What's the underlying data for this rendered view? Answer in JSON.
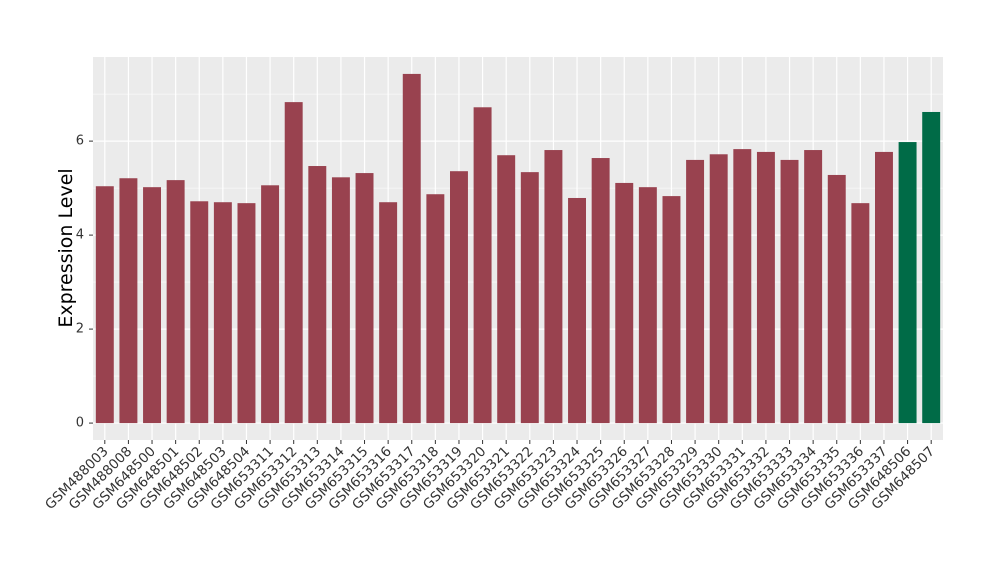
{
  "chart_data": {
    "type": "bar",
    "y_label": "Expression Level",
    "categories": [
      "GSM488003",
      "GSM488008",
      "GSM648500",
      "GSM648501",
      "GSM648502",
      "GSM648503",
      "GSM648504",
      "GSM653311",
      "GSM653312",
      "GSM653313",
      "GSM653314",
      "GSM653315",
      "GSM653316",
      "GSM653317",
      "GSM653318",
      "GSM653319",
      "GSM653320",
      "GSM653321",
      "GSM653322",
      "GSM653323",
      "GSM653324",
      "GSM653325",
      "GSM653326",
      "GSM653327",
      "GSM653328",
      "GSM653329",
      "GSM653330",
      "GSM653331",
      "GSM653332",
      "GSM653333",
      "GSM653334",
      "GSM653335",
      "GSM653336",
      "GSM653337",
      "GSM648506",
      "GSM648507"
    ],
    "values": [
      5.04,
      5.21,
      5.02,
      5.17,
      4.72,
      4.7,
      4.68,
      5.06,
      6.83,
      5.47,
      5.23,
      5.32,
      4.7,
      7.43,
      4.87,
      5.36,
      6.72,
      5.7,
      5.34,
      5.81,
      4.79,
      5.64,
      5.11,
      5.02,
      4.83,
      5.6,
      5.72,
      5.83,
      5.77,
      5.6,
      5.81,
      5.28,
      4.68,
      5.77,
      5.98,
      6.62
    ],
    "colors": [
      "#99424f",
      "#99424f",
      "#99424f",
      "#99424f",
      "#99424f",
      "#99424f",
      "#99424f",
      "#99424f",
      "#99424f",
      "#99424f",
      "#99424f",
      "#99424f",
      "#99424f",
      "#99424f",
      "#99424f",
      "#99424f",
      "#99424f",
      "#99424f",
      "#99424f",
      "#99424f",
      "#99424f",
      "#99424f",
      "#99424f",
      "#99424f",
      "#99424f",
      "#99424f",
      "#99424f",
      "#99424f",
      "#99424f",
      "#99424f",
      "#99424f",
      "#99424f",
      "#99424f",
      "#99424f",
      "#006b47",
      "#006b47"
    ],
    "ylim": [
      -0.36,
      7.79
    ],
    "yticks": [
      0,
      2,
      4,
      6
    ],
    "grid": true
  }
}
